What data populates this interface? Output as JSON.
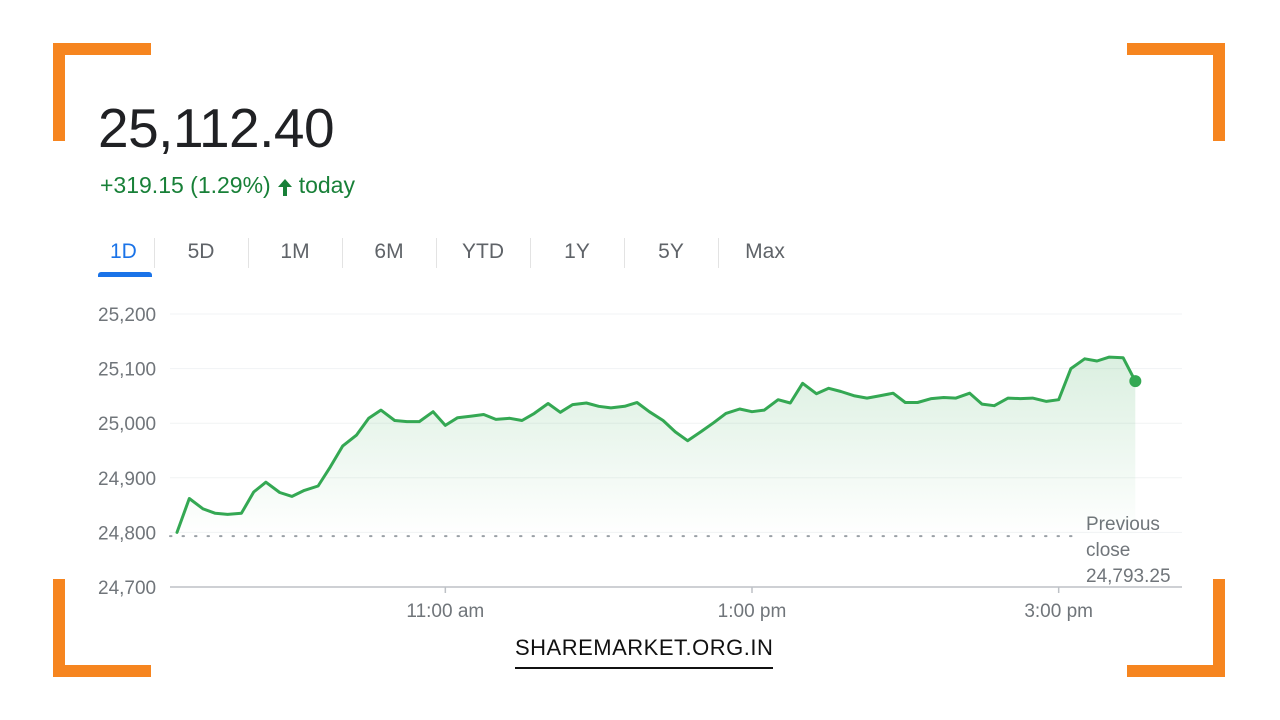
{
  "header": {
    "price": "25,112.40",
    "change": "+319.15 (1.29%)",
    "change_suffix": "today",
    "arrow_icon": "arrow-up-icon"
  },
  "tabs": [
    {
      "label": "1D",
      "active": true
    },
    {
      "label": "5D"
    },
    {
      "label": "1M"
    },
    {
      "label": "6M"
    },
    {
      "label": "YTD"
    },
    {
      "label": "1Y"
    },
    {
      "label": "5Y"
    },
    {
      "label": "Max"
    }
  ],
  "colors": {
    "accent": "#1a73e8",
    "up": "#188038",
    "line": "#34a853",
    "corner": "#f6851f"
  },
  "chart_data": {
    "type": "area",
    "x_unit": "time of day",
    "ylim": [
      24700,
      25200
    ],
    "yticks": [
      25200,
      25100,
      25000,
      24900,
      24800,
      24700
    ],
    "ytick_labels": [
      "25,200",
      "25,100",
      "25,000",
      "24,900",
      "24,800",
      "24,700"
    ],
    "xticks": [
      11,
      13,
      15
    ],
    "xtick_labels": [
      "11:00 am",
      "1:00 pm",
      "3:00 pm"
    ],
    "xlim": [
      9.25,
      16.0
    ],
    "previous_close": 24793.25,
    "previous_close_label": [
      "Previous",
      "close",
      "24,793.25"
    ],
    "grid": true,
    "series": [
      {
        "x": [
          9.25,
          9.33,
          9.42,
          9.5,
          9.58,
          9.67,
          9.75,
          9.83,
          9.92,
          10.0,
          10.08,
          10.17,
          10.25,
          10.33,
          10.42,
          10.5,
          10.58,
          10.67,
          10.75,
          10.83,
          10.92,
          11.0,
          11.08,
          11.17,
          11.25,
          11.33,
          11.42,
          11.5,
          11.58,
          11.67,
          11.75,
          11.83,
          11.92,
          12.0,
          12.08,
          12.17,
          12.25,
          12.33,
          12.42,
          12.5,
          12.58,
          12.67,
          12.75,
          12.83,
          12.92,
          13.0,
          13.08,
          13.17,
          13.25,
          13.33,
          13.42,
          13.5,
          13.58,
          13.67,
          13.75,
          13.83,
          13.92,
          14.0,
          14.08,
          14.17,
          14.25,
          14.33,
          14.42,
          14.5,
          14.58,
          14.67,
          14.75,
          14.83,
          14.92,
          15.0,
          15.08,
          15.17,
          15.25,
          15.33,
          15.42,
          15.5
        ],
        "values": [
          24800,
          24862,
          24843,
          24835,
          24833,
          24835,
          24874,
          24892,
          24873,
          24866,
          24877,
          24885,
          24920,
          24958,
          24978,
          25009,
          25024,
          25005,
          25003,
          25003,
          25021,
          24996,
          25010,
          25013,
          25016,
          25007,
          25009,
          25005,
          25018,
          25036,
          25020,
          25034,
          25037,
          25031,
          25028,
          25031,
          25038,
          25021,
          25005,
          24984,
          24968,
          24985,
          25001,
          25018,
          25026,
          25021,
          25024,
          25043,
          25037,
          25073,
          25054,
          25064,
          25058,
          25050,
          25046,
          25050,
          25055,
          25038,
          25038,
          25045,
          25047,
          25046,
          25055,
          25035,
          25032,
          25046,
          25045,
          25046,
          25040,
          25043,
          25100,
          25118,
          25114,
          25121,
          25120,
          25077
        ]
      }
    ]
  },
  "footer": {
    "brand": "SHAREMARKET.ORG.IN"
  }
}
